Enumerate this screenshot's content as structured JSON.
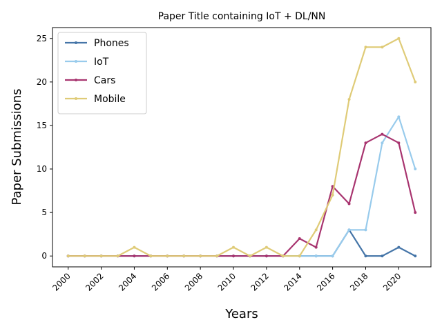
{
  "chart_data": {
    "type": "line",
    "title": "Paper Title containing IoT + DL/NN",
    "xlabel": "Years",
    "ylabel": "Paper Submissions",
    "x": [
      2000,
      2001,
      2002,
      2003,
      2004,
      2005,
      2006,
      2007,
      2008,
      2009,
      2010,
      2011,
      2012,
      2013,
      2014,
      2015,
      2016,
      2017,
      2018,
      2019,
      2020,
      2021
    ],
    "xticks": [
      "2000",
      "2002",
      "2004",
      "2006",
      "2008",
      "2010",
      "2012",
      "2014",
      "2016",
      "2018",
      "2020"
    ],
    "yticks": [
      "0",
      "5",
      "10",
      "15",
      "20",
      "25"
    ],
    "xlim": [
      1999.05,
      2021.95
    ],
    "ylim": [
      -1.25,
      26.25
    ],
    "grid": false,
    "legend_position": "top-left",
    "series": [
      {
        "name": "Phones",
        "color": "#4575a8",
        "values": [
          0,
          0,
          0,
          0,
          0,
          0,
          0,
          0,
          0,
          0,
          0,
          0,
          0,
          0,
          0,
          0,
          0,
          3,
          0,
          0,
          1,
          0
        ]
      },
      {
        "name": "IoT",
        "color": "#98cbec",
        "values": [
          0,
          0,
          0,
          0,
          0,
          0,
          0,
          0,
          0,
          0,
          0,
          0,
          0,
          0,
          0,
          0,
          0,
          3,
          3,
          13,
          16,
          10
        ]
      },
      {
        "name": "Cars",
        "color": "#a8346f",
        "values": [
          0,
          0,
          0,
          0,
          0,
          0,
          0,
          0,
          0,
          0,
          0,
          0,
          0,
          0,
          2,
          1,
          8,
          6,
          13,
          14,
          13,
          5
        ]
      },
      {
        "name": "Mobile",
        "color": "#dfcb77",
        "values": [
          0,
          0,
          0,
          0,
          1,
          0,
          0,
          0,
          0,
          0,
          1,
          0,
          1,
          0,
          0,
          3,
          7,
          18,
          24,
          24,
          25,
          20
        ]
      }
    ]
  }
}
